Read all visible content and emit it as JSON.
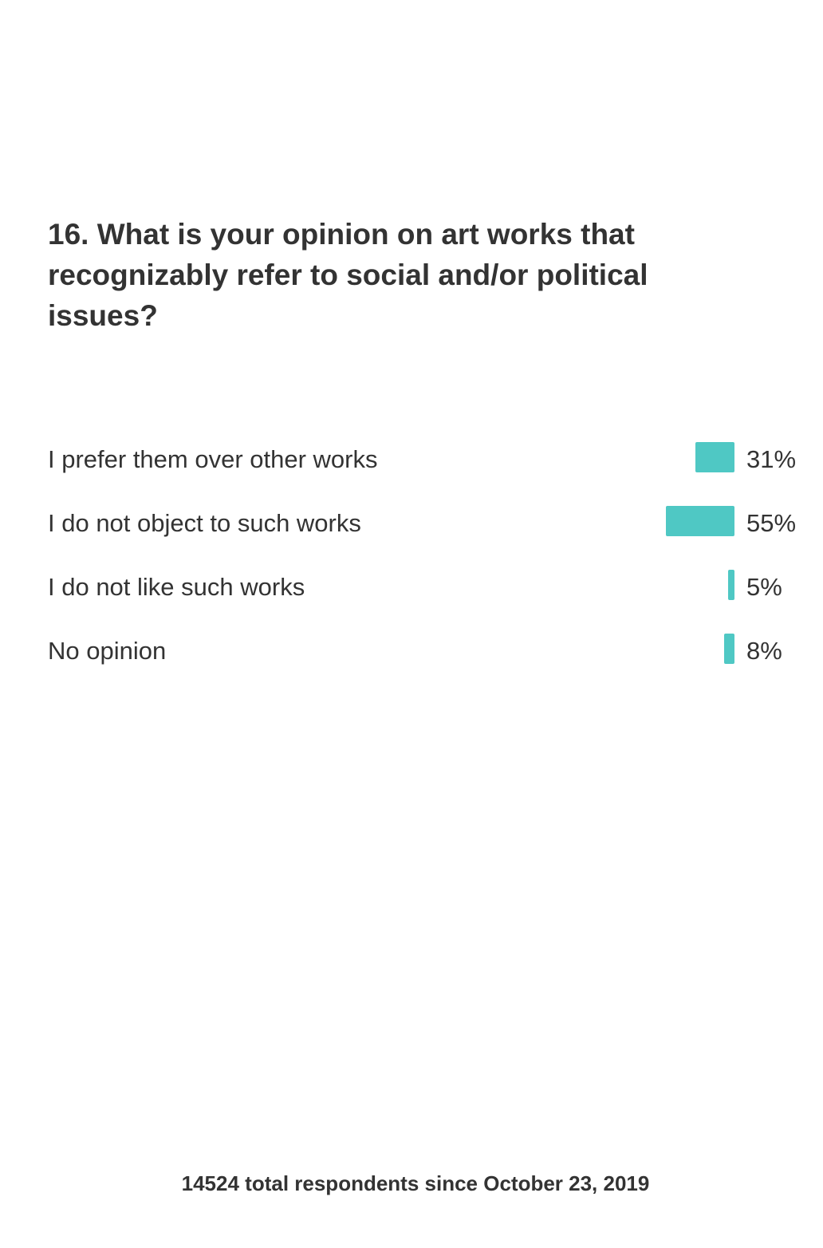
{
  "question": {
    "title": "16. What is your opinion on art works that recognizably refer to social and/or political issues?"
  },
  "colors": {
    "bar": "#4fc8c4",
    "text": "#333333",
    "background": "#ffffff"
  },
  "chart_data": {
    "type": "bar",
    "orientation": "horizontal",
    "categories": [
      "I prefer them over other works",
      "I do not object to such works",
      "I do not like such works",
      "No opinion"
    ],
    "values": [
      31,
      55,
      5,
      8
    ],
    "value_labels": [
      "31%",
      "55%",
      "5%",
      "8%"
    ],
    "unit": "%"
  },
  "footer": {
    "text": "14524 total respondents since October 23, 2019"
  }
}
